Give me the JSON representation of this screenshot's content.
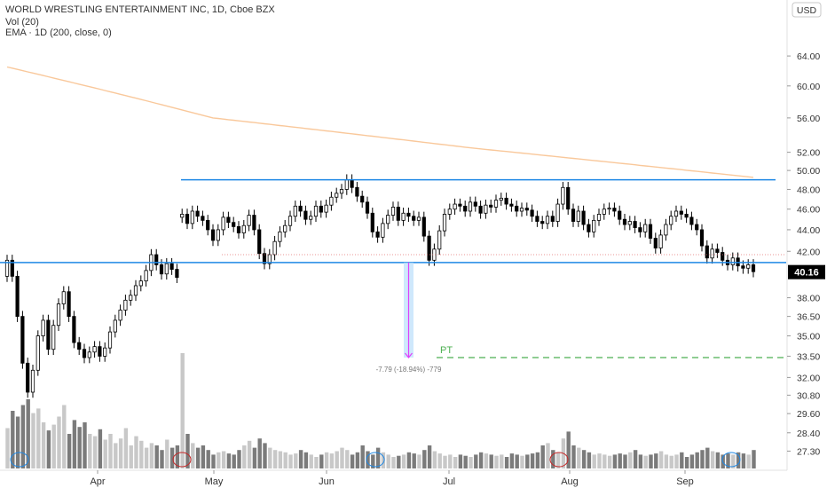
{
  "header": {
    "title": "WORLD WRESTLING ENTERTAINMENT INC, 1D, Cboe BZX",
    "indicators": [
      "Vol (20)",
      "EMA · 1D (200, close, 0)"
    ],
    "currency": "USD"
  },
  "colors": {
    "up_candle": "#ffffff",
    "down_candle": "#000000",
    "resistance": "#1e88e5",
    "ema": "#f9c89b",
    "volume_up": "#c8c8c8",
    "volume_down": "#7b7b7b",
    "projection": "#e040fb",
    "target": "#4caf50",
    "price_badge": "#000000"
  },
  "price_badge": "40.16",
  "annotations": {
    "target_label": "PT",
    "measure_label": "-7.79 (-18.94%) -779"
  },
  "chart_data": {
    "type": "candlestick",
    "title": "WORLD WRESTLING ENTERTAINMENT INC, 1D, Cboe BZX",
    "y_axis": {
      "scale": "log",
      "ylim": [
        26.6,
        69.5
      ],
      "ticks": [
        "64.00",
        "60.00",
        "56.00",
        "52.00",
        "50.00",
        "48.00",
        "46.00",
        "44.00",
        "42.00",
        "40.16",
        "38.00",
        "36.50",
        "35.00",
        "33.50",
        "32.00",
        "30.80",
        "29.60",
        "28.40",
        "27.30"
      ]
    },
    "x_axis": {
      "ticks": [
        "Apr",
        "May",
        "Jun",
        "Jul",
        "Aug",
        "Sep"
      ]
    },
    "series": {
      "close": [
        41.2,
        39.8,
        36.5,
        33.0,
        31.0,
        32.5,
        35.0,
        36.2,
        34.0,
        35.8,
        37.5,
        38.5,
        36.5,
        34.5,
        34.0,
        33.4,
        33.8,
        34.2,
        33.5,
        34.1,
        35.3,
        36.2,
        37.0,
        37.8,
        38.2,
        39.0,
        39.4,
        40.3,
        41.7,
        40.8,
        40.0,
        40.9,
        40.4,
        39.7,
        45.5,
        44.6,
        45.8,
        45.3,
        44.9,
        44.0,
        43.0,
        44.0,
        45.2,
        44.7,
        44.3,
        43.7,
        44.4,
        45.4,
        44.0,
        41.8,
        40.9,
        41.7,
        42.9,
        43.8,
        44.4,
        45.3,
        46.3,
        45.8,
        45.0,
        45.3,
        46.3,
        45.7,
        46.4,
        47.2,
        47.6,
        48.0,
        49.0,
        48.2,
        47.3,
        46.7,
        45.6,
        43.8,
        43.3,
        44.6,
        45.4,
        46.2,
        44.9,
        45.6,
        45.3,
        44.9,
        45.2,
        43.4,
        41.2,
        42.2,
        43.9,
        45.5,
        46.0,
        46.5,
        46.3,
        45.8,
        46.7,
        46.3,
        45.6,
        46.4,
        46.2,
        46.9,
        47.1,
        46.5,
        46.3,
        45.8,
        46.1,
        45.9,
        45.3,
        44.8,
        44.6,
        45.3,
        44.8,
        46.5,
        48.2,
        46.0,
        44.8,
        45.8,
        44.5,
        43.8,
        44.9,
        45.5,
        46.0,
        46.1,
        45.8,
        45.0,
        44.5,
        44.8,
        44.2,
        43.8,
        44.5,
        43.2,
        42.3,
        43.5,
        44.5,
        45.3,
        45.8,
        45.5,
        45.2,
        44.5,
        44.0,
        42.5,
        41.4,
        42.2,
        41.9,
        41.2,
        40.8,
        41.4,
        40.7,
        40.5,
        40.8,
        40.2
      ],
      "open": [
        39.8,
        41.2,
        39.8,
        36.5,
        33.0,
        31.0,
        32.5,
        35.0,
        36.2,
        34.0,
        35.8,
        37.5,
        38.5,
        36.5,
        34.5,
        34.0,
        33.4,
        33.8,
        34.2,
        33.5,
        34.1,
        35.3,
        36.2,
        37.0,
        37.8,
        38.2,
        39.0,
        39.4,
        40.3,
        41.7,
        40.8,
        40.0,
        40.9,
        40.4,
        45.2,
        45.5,
        44.6,
        45.8,
        45.3,
        44.9,
        44.0,
        43.0,
        44.0,
        45.2,
        44.7,
        44.3,
        43.7,
        44.4,
        45.4,
        44.0,
        41.8,
        40.9,
        41.7,
        42.9,
        43.8,
        44.4,
        45.3,
        46.3,
        45.8,
        45.0,
        45.3,
        46.3,
        45.7,
        46.4,
        47.2,
        47.6,
        48.0,
        49.0,
        48.2,
        47.3,
        46.7,
        45.6,
        43.8,
        43.3,
        44.6,
        45.4,
        46.2,
        44.9,
        45.6,
        45.3,
        44.9,
        45.2,
        43.4,
        41.2,
        42.2,
        43.9,
        45.5,
        46.0,
        46.5,
        46.3,
        45.8,
        46.7,
        46.3,
        45.6,
        46.4,
        46.2,
        46.9,
        47.1,
        46.5,
        46.3,
        45.8,
        46.1,
        45.9,
        45.3,
        44.8,
        44.6,
        45.3,
        44.8,
        46.5,
        48.2,
        46.0,
        44.8,
        45.8,
        44.5,
        43.8,
        44.9,
        45.5,
        46.0,
        46.1,
        45.8,
        45.0,
        44.5,
        44.8,
        44.2,
        43.8,
        44.5,
        43.2,
        42.3,
        43.5,
        44.5,
        45.3,
        45.8,
        45.5,
        45.2,
        44.5,
        44.0,
        42.5,
        41.4,
        42.2,
        41.9,
        41.2,
        40.8,
        41.4,
        40.7,
        40.5,
        40.8
      ],
      "ema200_endpoints": [
        {
          "bar": 0,
          "value": 62.5
        },
        {
          "bar": 40,
          "value": 56.0
        },
        {
          "bar": 90,
          "value": 52.5
        },
        {
          "bar": 146,
          "value": 49.2
        }
      ],
      "volume_relative": [
        0.35,
        0.5,
        0.45,
        0.55,
        0.6,
        0.48,
        0.52,
        0.4,
        0.33,
        0.38,
        0.45,
        0.55,
        0.3,
        0.42,
        0.36,
        0.4,
        0.3,
        0.28,
        0.34,
        0.25,
        0.3,
        0.22,
        0.26,
        0.35,
        0.2,
        0.28,
        0.24,
        0.18,
        0.22,
        0.2,
        0.16,
        0.25,
        0.18,
        0.2,
        1.0,
        0.3,
        0.22,
        0.18,
        0.2,
        0.16,
        0.12,
        0.14,
        0.15,
        0.13,
        0.12,
        0.16,
        0.2,
        0.24,
        0.18,
        0.26,
        0.22,
        0.18,
        0.16,
        0.15,
        0.14,
        0.12,
        0.13,
        0.16,
        0.14,
        0.12,
        0.1,
        0.12,
        0.14,
        0.13,
        0.15,
        0.18,
        0.16,
        0.12,
        0.14,
        0.2,
        0.15,
        0.12,
        0.18,
        0.14,
        0.12,
        0.1,
        0.11,
        0.12,
        0.14,
        0.13,
        0.12,
        0.16,
        0.2,
        0.15,
        0.13,
        0.11,
        0.12,
        0.1,
        0.12,
        0.11,
        0.1,
        0.12,
        0.14,
        0.13,
        0.12,
        0.11,
        0.12,
        0.1,
        0.13,
        0.12,
        0.11,
        0.12,
        0.13,
        0.14,
        0.2,
        0.22,
        0.16,
        0.14,
        0.26,
        0.32,
        0.2,
        0.18,
        0.16,
        0.14,
        0.12,
        0.13,
        0.12,
        0.11,
        0.12,
        0.13,
        0.12,
        0.14,
        0.16,
        0.12,
        0.11,
        0.12,
        0.13,
        0.15,
        0.12,
        0.11,
        0.12,
        0.14,
        0.1,
        0.12,
        0.14,
        0.16,
        0.18,
        0.15,
        0.14,
        0.12,
        0.13,
        0.12,
        0.14,
        0.13,
        0.12,
        0.16
      ]
    },
    "levels": {
      "resistance": 49.0,
      "support": 41.0,
      "target": 33.4
    },
    "grid": false,
    "legend": "top-left"
  }
}
